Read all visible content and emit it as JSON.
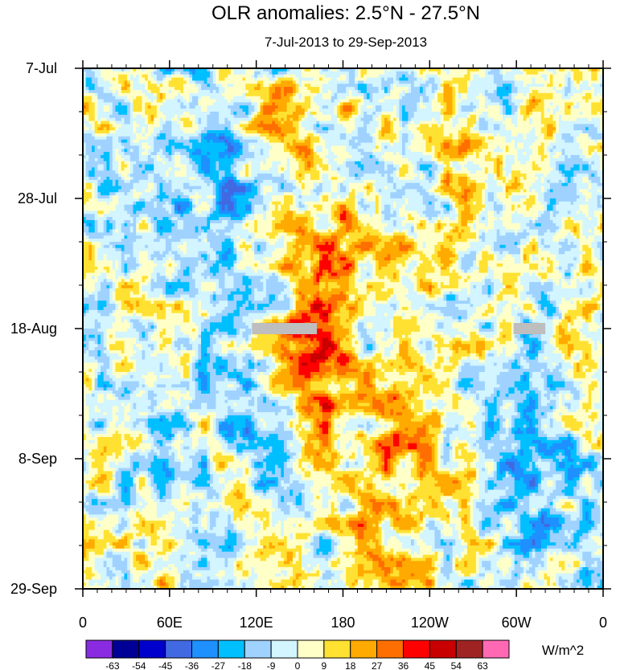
{
  "chart_data": {
    "type": "heatmap",
    "title": "OLR anomalies: 2.5°N - 27.5°N",
    "subtitle": "7-Jul-2013 to 29-Sep-2013",
    "xlabel": "",
    "ylabel": "",
    "x_ticks": [
      "0",
      "60E",
      "120E",
      "180",
      "120W",
      "60W",
      "0"
    ],
    "x_range_deg_east": [
      0,
      360
    ],
    "y_ticks": [
      "7-Jul",
      "28-Jul",
      "18-Aug",
      "8-Sep",
      "29-Sep"
    ],
    "y_range_days": [
      0,
      84
    ],
    "missing_data_rows": [
      {
        "lon_start": 117,
        "lon_end": 162,
        "day": 42
      },
      {
        "lon_start": 298,
        "lon_end": 320,
        "day": 42
      }
    ],
    "colorbar": {
      "units": "W/m^2",
      "levels": [
        "-63",
        "-54",
        "-45",
        "-36",
        "-27",
        "-18",
        "-9",
        "0",
        "9",
        "18",
        "27",
        "36",
        "45",
        "54",
        "63"
      ],
      "colors": [
        "#8a2be2",
        "#000096",
        "#0000cd",
        "#4169e1",
        "#1e90ff",
        "#00bfff",
        "#a0d2ff",
        "#d2f5ff",
        "#ffffc8",
        "#ffe132",
        "#ffaa00",
        "#ff6e00",
        "#ff0000",
        "#c80000",
        "#a02323",
        "#ff69b4"
      ]
    }
  }
}
